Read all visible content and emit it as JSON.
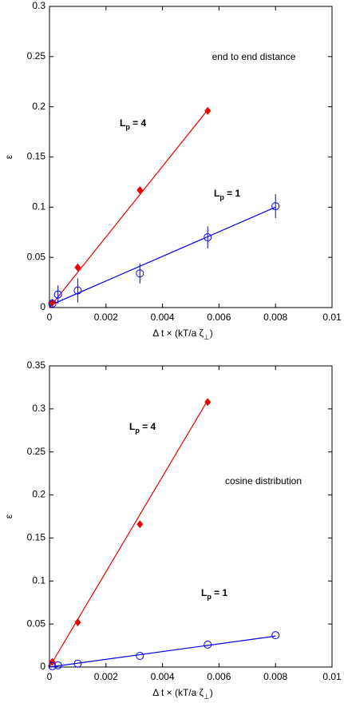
{
  "chart_data": [
    {
      "type": "scatter",
      "xlabel": {
        "text": "Δ t × (kT/a ζ",
        "sub": "⊥",
        "suffix": ")"
      },
      "ylabel": "ε",
      "xlim": [
        0,
        0.01
      ],
      "xticks": [
        0,
        0.002,
        0.004,
        0.006,
        0.008,
        0.01
      ],
      "ylim": [
        0,
        0.3
      ],
      "yticks": [
        0,
        0.05,
        0.1,
        0.15,
        0.2,
        0.25,
        0.3
      ],
      "annotations": [
        {
          "text": "end to end distance"
        },
        {
          "text": "L",
          "sub": "p",
          "suffix": " = 4"
        },
        {
          "text": "L",
          "sub": "p",
          "suffix": " = 1"
        }
      ],
      "series": [
        {
          "marker": "diamond",
          "color": "#ee0000",
          "x": [
            0.0001,
            0.001,
            0.0032,
            0.0056
          ],
          "values": [
            0.005,
            0.04,
            0.117,
            0.196
          ]
        },
        {
          "marker": "circle",
          "color": "#0000ee",
          "x": [
            0.0001,
            0.0003,
            0.001,
            0.0032,
            0.0056,
            0.008
          ],
          "values": [
            0.004,
            0.013,
            0.017,
            0.034,
            0.07,
            0.101
          ],
          "errors": [
            0.003,
            0.009,
            0.012,
            0.01,
            0.011,
            0.012
          ]
        }
      ],
      "fits": [
        {
          "color": "#ee0000",
          "x": [
            0,
            0.0056
          ],
          "values": [
            0,
            0.197
          ]
        },
        {
          "color": "#0000ee",
          "x": [
            0,
            0.008
          ],
          "values": [
            0.002,
            0.1
          ]
        }
      ]
    },
    {
      "type": "scatter",
      "xlabel": {
        "text": "Δ t × (kT/a ζ",
        "sub": "⊥",
        "suffix": ")"
      },
      "ylabel": "ε",
      "xlim": [
        0,
        0.01
      ],
      "xticks": [
        0,
        0.002,
        0.004,
        0.006,
        0.008,
        0.01
      ],
      "ylim": [
        0,
        0.35
      ],
      "yticks": [
        0,
        0.05,
        0.1,
        0.15,
        0.2,
        0.25,
        0.3,
        0.35
      ],
      "annotations": [
        {
          "text": "cosine distribution"
        },
        {
          "text": "L",
          "sub": "p",
          "suffix": " = 4"
        },
        {
          "text": "L",
          "sub": "p",
          "suffix": " = 1"
        }
      ],
      "series": [
        {
          "marker": "diamond",
          "color": "#ee0000",
          "x": [
            0.0001,
            0.001,
            0.0032,
            0.0056
          ],
          "values": [
            0.006,
            0.052,
            0.166,
            0.308
          ]
        },
        {
          "marker": "circle",
          "color": "#0000ee",
          "x": [
            0.0001,
            0.0003,
            0.001,
            0.0032,
            0.0056,
            0.008
          ],
          "values": [
            0.001,
            0.002,
            0.004,
            0.013,
            0.026,
            0.037
          ]
        }
      ],
      "fits": [
        {
          "color": "#ee0000",
          "x": [
            0,
            0.0056
          ],
          "values": [
            0,
            0.31
          ]
        },
        {
          "color": "#0000ee",
          "x": [
            0,
            0.008
          ],
          "values": [
            0,
            0.036
          ]
        }
      ]
    }
  ]
}
